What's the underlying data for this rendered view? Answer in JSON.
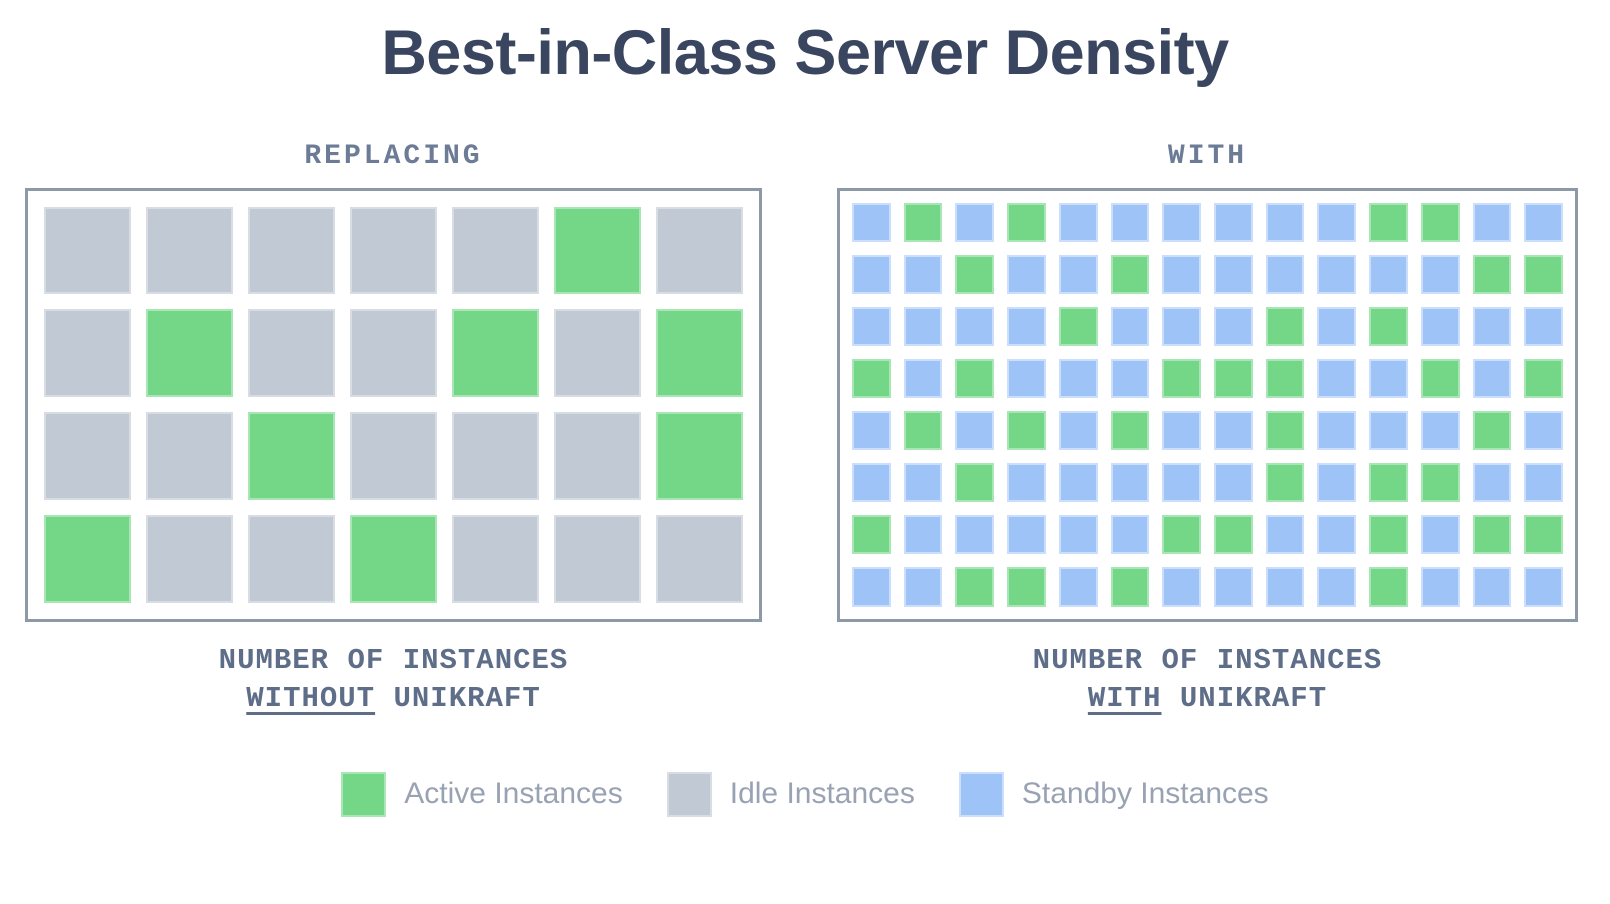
{
  "title": "Best-in-Class Server Density",
  "colors": {
    "active": "#74d788",
    "idle": "#c1cad4",
    "standby": "#9dc3f7",
    "title_text": "#3a4660",
    "header_text": "#6c7b96",
    "caption_text": "#5f6e88",
    "legend_text": "#99a2b2",
    "box_border": "#8e99a8"
  },
  "left_panel": {
    "header": "REPLACING",
    "caption_line1": "NUMBER OF INSTANCES",
    "caption_emphasis": "WITHOUT",
    "caption_suffix": "UNIKRAFT",
    "grid": {
      "rows": 4,
      "cols": 7,
      "cells": [
        "IIIIIAI",
        "IAIIAIA",
        "IIAIIIA",
        "AIIAIII"
      ]
    }
  },
  "right_panel": {
    "header": "WITH",
    "caption_line1": "NUMBER OF INSTANCES",
    "caption_emphasis": "WITH",
    "caption_suffix": "UNIKRAFT",
    "grid": {
      "rows": 8,
      "cols": 14,
      "cells": [
        "SASASSSSSSAASS",
        "SSASSASSSSSSAA",
        "SSSSASSSASASSS",
        "ASASSSAAASSASA",
        "SASASASSASSSAS",
        "SSASSSSSASAASS",
        "ASSSSSAASSASAA",
        "SSAASASSSSASSS"
      ]
    }
  },
  "legend": {
    "items": [
      {
        "label": "Active Instances",
        "type": "active"
      },
      {
        "label": "Idle Instances",
        "type": "idle"
      },
      {
        "label": "Standby Instances",
        "type": "standby"
      }
    ]
  },
  "chart_data": [
    {
      "type": "heatmap",
      "title": "REPLACING — NUMBER OF INSTANCES WITHOUT UNIKRAFT",
      "rows": 4,
      "cols": 7,
      "cell_codes": [
        "IIIIIAI",
        "IAIIAIA",
        "IIAIIIA",
        "AIIAIII"
      ],
      "code_legend": {
        "A": "Active Instances",
        "I": "Idle Instances"
      },
      "counts": {
        "Active Instances": 8,
        "Idle Instances": 20,
        "total": 28
      },
      "legend_position": "bottom"
    },
    {
      "type": "heatmap",
      "title": "WITH — NUMBER OF INSTANCES WITH UNIKRAFT",
      "rows": 8,
      "cols": 14,
      "cell_codes": [
        "SASASSSSSSAASS",
        "SSASSASSSSSSAA",
        "SSSSASSSASASSS",
        "ASASSSAAASSASA",
        "SASASASSASSSAS",
        "SSASSSSSASAASS",
        "ASSSSSAASSASAA",
        "SSAASASSSSASSS"
      ],
      "code_legend": {
        "A": "Active Instances",
        "S": "Standby Instances"
      },
      "counts": {
        "Active Instances": 37,
        "Standby Instances": 75,
        "total": 112
      },
      "legend_position": "bottom"
    }
  ]
}
